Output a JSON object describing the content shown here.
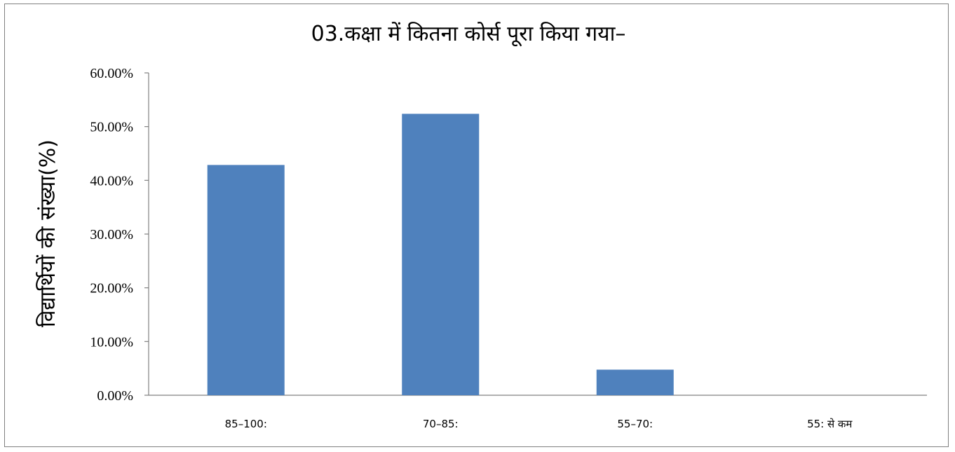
{
  "chart_data": {
    "type": "bar",
    "title": "03.कक्षा में कितना कोर्स पूरा किया गया–",
    "ylabel": "विद्यार्थियों की संख्या(%)",
    "xlabel": "",
    "categories": [
      "85–100:",
      "70–85:",
      "55–70:",
      "55: से कम"
    ],
    "values": [
      42.86,
      52.38,
      4.76,
      0
    ],
    "ylim": [
      0,
      60
    ],
    "yticks": [
      "0.00%",
      "10.00%",
      "20.00%",
      "30.00%",
      "40.00%",
      "50.00%",
      "60.00%"
    ],
    "bar_color": "#4f81bd",
    "grid": false,
    "legend": "none"
  }
}
